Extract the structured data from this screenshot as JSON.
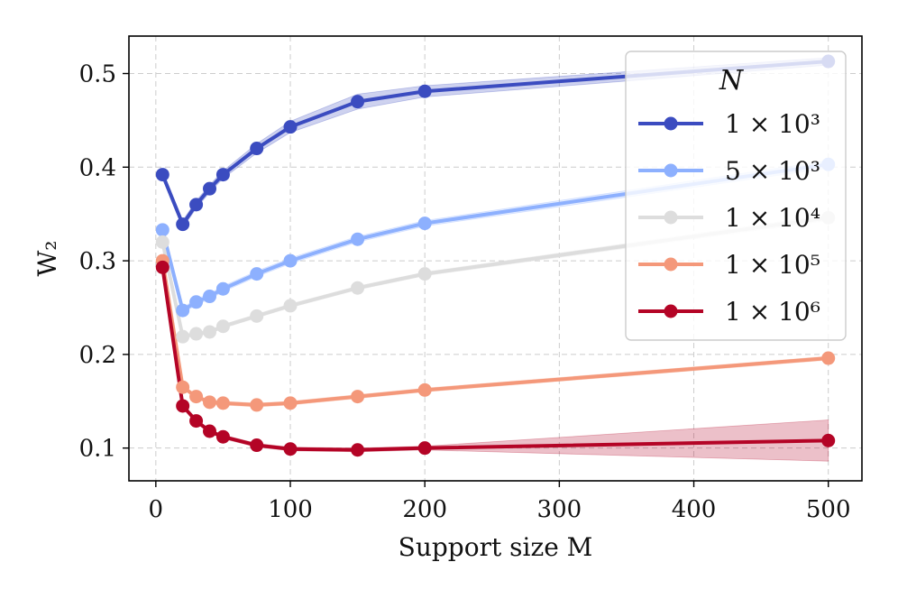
{
  "chart_data": {
    "type": "line",
    "title": "",
    "xlabel": "Support size M",
    "ylabel": "W₂",
    "xlim": [
      -20,
      525
    ],
    "ylim": [
      0.065,
      0.54
    ],
    "xticks": [
      0,
      100,
      200,
      300,
      400,
      500
    ],
    "yticks": [
      0.1,
      0.2,
      0.3,
      0.4,
      0.5
    ],
    "grid": true,
    "legend_title": "N",
    "legend_position": "top-right",
    "x": [
      5,
      20,
      30,
      40,
      50,
      75,
      100,
      150,
      200,
      500
    ],
    "series": [
      {
        "name": "1 × 10³",
        "color": "#3b4cc0",
        "values": [
          0.392,
          0.339,
          0.36,
          0.377,
          0.392,
          0.42,
          0.443,
          0.47,
          0.481,
          0.513
        ],
        "band": [
          0.004,
          0.004,
          0.004,
          0.004,
          0.004,
          0.005,
          0.006,
          0.008,
          0.006,
          0.004
        ]
      },
      {
        "name": "5 × 10³",
        "color": "#8db0fe",
        "values": [
          0.333,
          0.247,
          0.256,
          0.262,
          0.27,
          0.286,
          0.3,
          0.323,
          0.34,
          0.403
        ],
        "band": [
          0.003,
          0.003,
          0.003,
          0.003,
          0.003,
          0.003,
          0.003,
          0.003,
          0.003,
          0.004
        ]
      },
      {
        "name": "1 × 10⁴",
        "color": "#dddddd",
        "values": [
          0.32,
          0.219,
          0.222,
          0.224,
          0.23,
          0.241,
          0.252,
          0.271,
          0.286,
          0.346
        ],
        "band": [
          0.002,
          0.002,
          0.002,
          0.002,
          0.002,
          0.002,
          0.002,
          0.002,
          0.002,
          0.003
        ]
      },
      {
        "name": "1 × 10⁵",
        "color": "#f4987a",
        "values": [
          0.3,
          0.165,
          0.155,
          0.149,
          0.148,
          0.146,
          0.148,
          0.155,
          0.162,
          0.196
        ],
        "band": [
          0.002,
          0.002,
          0.002,
          0.002,
          0.002,
          0.002,
          0.002,
          0.002,
          0.002,
          0.002
        ]
      },
      {
        "name": "1 × 10⁶",
        "color": "#b40426",
        "values": [
          0.293,
          0.145,
          0.129,
          0.118,
          0.112,
          0.103,
          0.099,
          0.098,
          0.1,
          0.108
        ],
        "band": [
          0.001,
          0.002,
          0.002,
          0.002,
          0.002,
          0.002,
          0.002,
          0.002,
          0.002,
          0.022
        ]
      }
    ]
  }
}
